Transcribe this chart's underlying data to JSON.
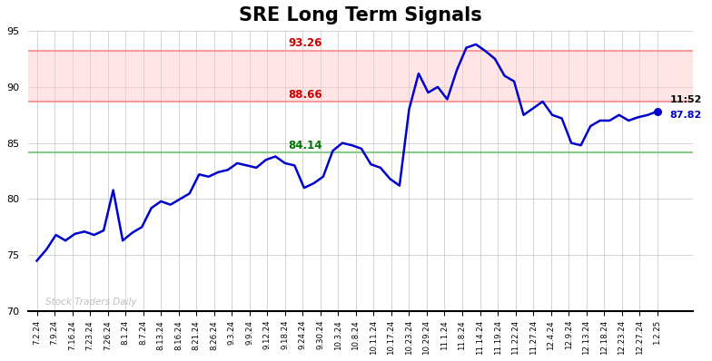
{
  "title": "SRE Long Term Signals",
  "title_fontsize": 15,
  "title_fontweight": "bold",
  "line_color": "#0000CC",
  "line_width": 1.8,
  "background_color": "#ffffff",
  "grid_color": "#cccccc",
  "ylim": [
    70,
    95
  ],
  "yticks": [
    70,
    75,
    80,
    85,
    90,
    95
  ],
  "hline_upper": 93.26,
  "hline_middle": 88.66,
  "hline_lower": 84.14,
  "hline_upper_label": "93.26",
  "hline_middle_label": "88.66",
  "hline_lower_label": "84.14",
  "watermark": "Stock Traders Daily",
  "last_time": "11:52",
  "last_price": "87.82",
  "last_price_val": 87.82,
  "xtick_labels": [
    "7.2.24",
    "7.9.24",
    "7.16.24",
    "7.23.24",
    "7.26.24",
    "8.1.24",
    "8.7.24",
    "8.13.24",
    "8.16.24",
    "8.21.24",
    "8.26.24",
    "9.3.24",
    "9.9.24",
    "9.12.24",
    "9.18.24",
    "9.24.24",
    "9.30.24",
    "10.3.24",
    "10.8.24",
    "10.11.24",
    "10.17.24",
    "10.23.24",
    "10.29.24",
    "11.1.24",
    "11.8.24",
    "11.14.24",
    "11.19.24",
    "11.22.24",
    "11.27.24",
    "12.4.24",
    "12.9.24",
    "12.13.24",
    "12.18.24",
    "12.23.24",
    "12.27.24",
    "1.2.25"
  ],
  "prices": [
    74.5,
    75.5,
    76.8,
    76.3,
    76.9,
    77.1,
    76.8,
    77.2,
    80.8,
    76.3,
    77.0,
    77.5,
    79.2,
    79.8,
    79.5,
    80.0,
    80.5,
    82.2,
    82.0,
    82.4,
    82.6,
    83.2,
    83.0,
    82.8,
    83.5,
    83.8,
    83.2,
    83.0,
    81.0,
    81.4,
    82.0,
    84.3,
    85.0,
    84.8,
    84.5,
    83.1,
    82.8,
    81.8,
    81.2,
    88.0,
    91.2,
    89.5,
    90.0,
    88.9,
    91.5,
    93.5,
    93.8,
    93.2,
    92.5,
    91.0,
    90.5,
    87.5,
    88.1,
    88.7,
    87.5,
    87.2,
    85.0,
    84.8,
    86.5,
    87.0,
    87.0,
    87.5,
    87.0,
    87.3,
    87.5,
    87.82
  ]
}
